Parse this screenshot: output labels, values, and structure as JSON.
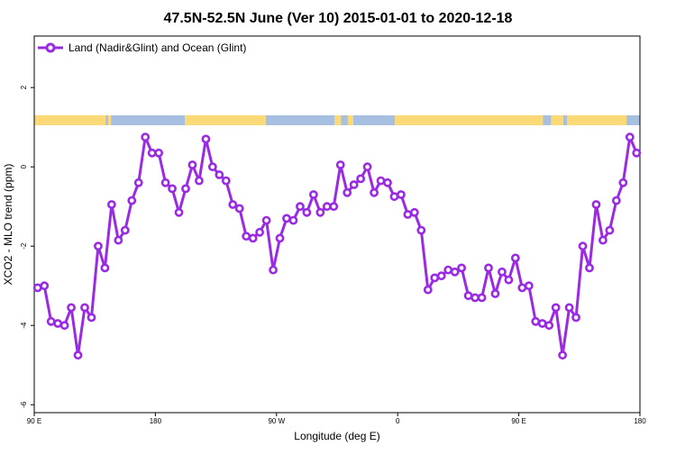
{
  "chart_data": {
    "type": "line",
    "title": "47.5N-52.5N June (Ver 10)   2015-01-01 to 2020-12-18",
    "xlabel": "Longitude (deg E)",
    "ylabel": "XCO2 - MLO trend (ppm)",
    "xlim": [
      90,
      540
    ],
    "ylim": [
      -6.2,
      3.3
    ],
    "x_ticks": [
      {
        "value": 90,
        "label": "90 E"
      },
      {
        "value": 180,
        "label": "180"
      },
      {
        "value": 270,
        "label": "90 W"
      },
      {
        "value": 360,
        "label": "0"
      },
      {
        "value": 450,
        "label": "90 E"
      },
      {
        "value": 540,
        "label": "180"
      }
    ],
    "y_ticks": [
      {
        "value": 2,
        "label": "2"
      },
      {
        "value": 0,
        "label": "0"
      },
      {
        "value": -2,
        "label": "-2"
      },
      {
        "value": -4,
        "label": "-4"
      },
      {
        "value": -6,
        "label": "-6"
      }
    ],
    "grid": false,
    "legend_position": "top-left",
    "series": [
      {
        "name": "Land (Nadir&Glint) and Ocean (Glint)",
        "color": "#9a2be2",
        "x": [
          92.5,
          97.5,
          102.5,
          107.5,
          112.5,
          117.5,
          122.5,
          127.5,
          132.5,
          137.5,
          142.5,
          147.5,
          152.5,
          157.5,
          162.5,
          167.5,
          172.5,
          177.5,
          182.5,
          187.5,
          192.5,
          197.5,
          202.5,
          207.5,
          212.5,
          217.5,
          222.5,
          227.5,
          232.5,
          237.5,
          242.5,
          247.5,
          252.5,
          257.5,
          262.5,
          267.5,
          272.5,
          277.5,
          282.5,
          287.5,
          292.5,
          297.5,
          302.5,
          307.5,
          312.5,
          317.5,
          322.5,
          327.5,
          332.5,
          337.5,
          342.5,
          347.5,
          352.5,
          357.5,
          362.5,
          367.5,
          372.5,
          377.5,
          382.5,
          387.5,
          392.5,
          397.5,
          402.5,
          407.5,
          412.5,
          417.5,
          422.5,
          427.5,
          432.5,
          437.5,
          442.5,
          447.5,
          452.5,
          457.5,
          462.5,
          467.5,
          472.5,
          477.5,
          482.5,
          487.5,
          492.5,
          497.5,
          502.5,
          507.5,
          512.5,
          517.5,
          522.5,
          527.5,
          532.5,
          537.5
        ],
        "values": [
          -3.05,
          -3.0,
          -3.9,
          -3.95,
          -4.0,
          -3.55,
          -4.75,
          -3.55,
          -3.8,
          -2.0,
          -2.55,
          -0.95,
          -1.85,
          -1.6,
          -0.85,
          -0.4,
          0.75,
          0.35,
          0.35,
          -0.4,
          -0.55,
          -1.15,
          -0.55,
          0.05,
          -0.35,
          0.7,
          0.0,
          -0.2,
          -0.35,
          -0.95,
          -1.05,
          -1.75,
          -1.8,
          -1.65,
          -1.35,
          -2.6,
          -1.8,
          -1.3,
          -1.35,
          -1.0,
          -1.15,
          -0.7,
          -1.15,
          -1.0,
          -1.0,
          0.05,
          -0.65,
          -0.45,
          -0.3,
          0.0,
          -0.65,
          -0.35,
          -0.4,
          -0.75,
          -0.7,
          -1.2,
          -1.15,
          -1.6,
          -3.1,
          -2.8,
          -2.75,
          -2.6,
          -2.65,
          -2.55,
          -3.25,
          -3.3,
          -3.3,
          -2.55,
          -3.2,
          -2.65,
          -2.85,
          -2.3,
          -3.05,
          -3.0,
          -3.9,
          -3.95,
          -4.0,
          -3.55,
          -4.75,
          -3.55,
          -3.8,
          -2.0,
          -2.55,
          -0.95,
          -1.85,
          -1.6,
          -0.85,
          -0.4,
          0.75,
          0.35
        ]
      }
    ],
    "surface_bar": {
      "y_range": [
        1.05,
        1.3
      ],
      "land_color": "#fcd977",
      "ocean_color": "#a7bfe0",
      "segments": [
        {
          "from": 90,
          "to": 143,
          "type": "land"
        },
        {
          "from": 143,
          "to": 145,
          "type": "ocean"
        },
        {
          "from": 145,
          "to": 147,
          "type": "land"
        },
        {
          "from": 147,
          "to": 202,
          "type": "ocean"
        },
        {
          "from": 202,
          "to": 262,
          "type": "land"
        },
        {
          "from": 262,
          "to": 313,
          "type": "ocean"
        },
        {
          "from": 313,
          "to": 318,
          "type": "land"
        },
        {
          "from": 318,
          "to": 323,
          "type": "ocean"
        },
        {
          "from": 323,
          "to": 327,
          "type": "land"
        },
        {
          "from": 327,
          "to": 358,
          "type": "ocean"
        },
        {
          "from": 358,
          "to": 468,
          "type": "land"
        },
        {
          "from": 468,
          "to": 474,
          "type": "ocean"
        },
        {
          "from": 474,
          "to": 483,
          "type": "land"
        },
        {
          "from": 483,
          "to": 486,
          "type": "ocean"
        },
        {
          "from": 486,
          "to": 530,
          "type": "land"
        },
        {
          "from": 530,
          "to": 540,
          "type": "ocean"
        }
      ]
    }
  }
}
